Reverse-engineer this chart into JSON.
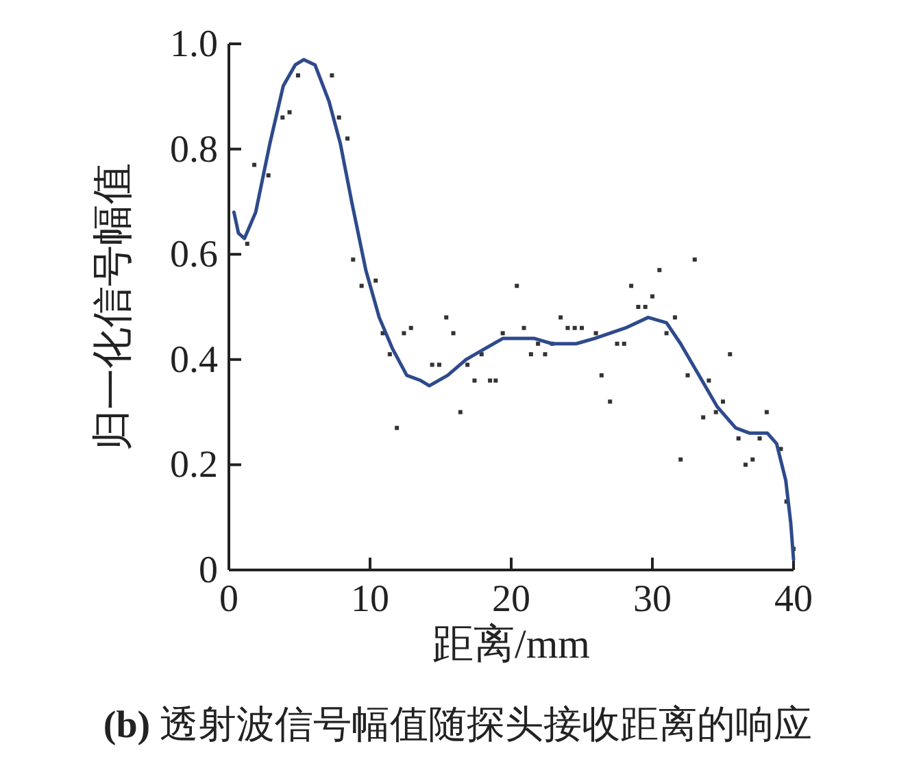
{
  "chart_data": {
    "type": "scatter",
    "xlabel": "距离/mm",
    "ylabel": "归一化信号幅值",
    "annotations": [
      "**(b)** 透射波信号幅值随探头接收距离的响应"
    ],
    "xlim": [
      0,
      40
    ],
    "ylim": [
      0,
      1
    ],
    "xticks": [
      0,
      10,
      20,
      30,
      40
    ],
    "yticks": [
      0,
      0.2,
      0.4,
      0.6,
      0.8,
      {
        "value": 1,
        "label": "1.0"
      }
    ],
    "grid": false,
    "series": [
      {
        "marker": "square",
        "color": "#333333",
        "x": [
          1.3,
          1.8,
          2.8,
          3.8,
          4.3,
          4.9,
          7.3,
          7.8,
          8.4,
          8.8,
          9.4,
          10.4,
          10.9,
          11.4,
          11.9,
          12.4,
          12.9,
          14.4,
          14.9,
          15.4,
          15.9,
          16.4,
          16.9,
          17.4,
          17.9,
          18.5,
          18.9,
          19.4,
          20.4,
          20.9,
          21.4,
          21.9,
          22.4,
          22.9,
          23.5,
          24.0,
          24.5,
          25.0,
          26.0,
          26.4,
          27.0,
          27.5,
          28.0,
          28.5,
          29.0,
          29.5,
          30.0,
          30.5,
          31.0,
          31.6,
          32.0,
          32.5,
          33.0,
          33.6,
          34.0,
          34.5,
          35.0,
          35.5,
          36.1,
          36.6,
          37.1,
          37.6,
          38.1,
          39.1,
          39.5,
          40.0
        ],
        "values": [
          0.62,
          0.77,
          0.75,
          0.86,
          0.87,
          0.94,
          0.94,
          0.86,
          0.82,
          0.59,
          0.54,
          0.55,
          0.45,
          0.41,
          0.27,
          0.45,
          0.46,
          0.39,
          0.39,
          0.48,
          0.45,
          0.3,
          0.39,
          0.36,
          0.41,
          0.36,
          0.36,
          0.45,
          0.54,
          0.46,
          0.41,
          0.43,
          0.41,
          0.43,
          0.48,
          0.46,
          0.46,
          0.46,
          0.45,
          0.37,
          0.32,
          0.43,
          0.43,
          0.54,
          0.5,
          0.5,
          0.52,
          0.57,
          0.45,
          0.48,
          0.21,
          0.37,
          0.59,
          0.29,
          0.36,
          0.3,
          0.32,
          0.41,
          0.25,
          0.2,
          0.21,
          0.25,
          0.3,
          0.23,
          0.13,
          0.04
        ]
      },
      {
        "type": "line",
        "line_style": "solid",
        "marker": "none",
        "color": "#2e4a8c",
        "x": [
          0.36,
          0.68,
          1.1,
          1.9,
          2.9,
          3.85,
          4.7,
          5.3,
          6.1,
          7.1,
          7.9,
          8.7,
          9.7,
          10.65,
          11.6,
          12.6,
          13.6,
          14.2,
          15.5,
          16.8,
          18.1,
          19.4,
          20.4,
          21.65,
          22.9,
          24.6,
          25.9,
          28.1,
          29.7,
          31.0,
          32.0,
          33.3,
          34.6,
          35.9,
          36.9,
          38.15,
          38.8,
          39.45,
          39.8,
          40.0
        ],
        "values": [
          0.68,
          0.64,
          0.63,
          0.68,
          0.81,
          0.92,
          0.96,
          0.97,
          0.96,
          0.89,
          0.81,
          0.7,
          0.57,
          0.48,
          0.42,
          0.37,
          0.36,
          0.35,
          0.37,
          0.4,
          0.42,
          0.44,
          0.44,
          0.44,
          0.43,
          0.43,
          0.44,
          0.46,
          0.48,
          0.47,
          0.43,
          0.37,
          0.31,
          0.27,
          0.26,
          0.26,
          0.24,
          0.17,
          0.09,
          0.02
        ]
      }
    ]
  }
}
